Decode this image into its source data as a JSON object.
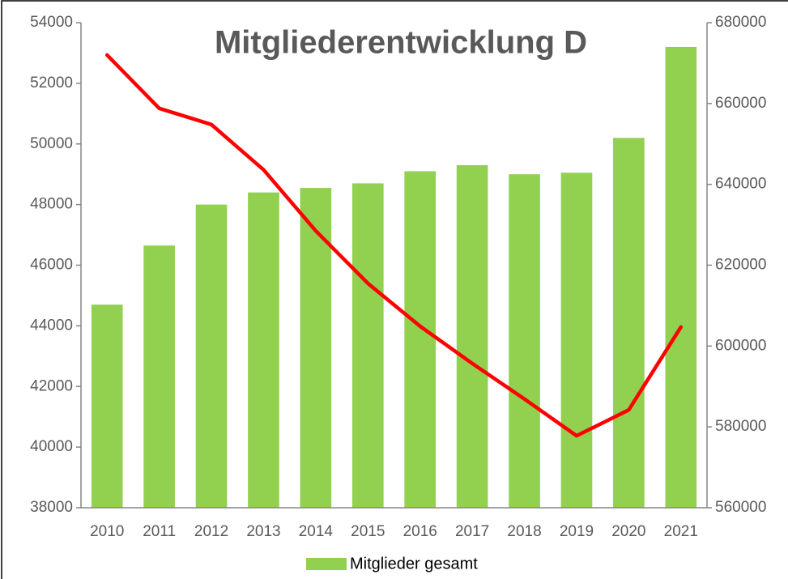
{
  "chart_data": {
    "type": "bar_line",
    "title": "Mitgliederentwicklung D",
    "categories": [
      "2010",
      "2011",
      "2012",
      "2013",
      "2014",
      "2015",
      "2016",
      "2017",
      "2018",
      "2019",
      "2020",
      "2021"
    ],
    "series": [
      {
        "name": "Mitglieder gesamt",
        "type": "bar",
        "color": "#92d050",
        "axis": "y",
        "values": [
          44700,
          46650,
          48000,
          48400,
          48550,
          48700,
          49100,
          49300,
          49000,
          49050,
          50200,
          53200
        ]
      },
      {
        "type": "line",
        "color": "#ff0000",
        "axis": "y2",
        "values": [
          672000,
          658800,
          654800,
          643600,
          628500,
          615500,
          604900,
          595700,
          586900,
          577800,
          584200,
          604700
        ]
      }
    ],
    "ylim": [
      38000,
      54000
    ],
    "yticks": [
      38000,
      40000,
      42000,
      44000,
      46000,
      48000,
      50000,
      52000,
      54000
    ],
    "y2lim": [
      560000,
      680000
    ],
    "y2ticks": [
      560000,
      580000,
      600000,
      620000,
      640000,
      660000,
      680000
    ],
    "legend": "bottom"
  }
}
